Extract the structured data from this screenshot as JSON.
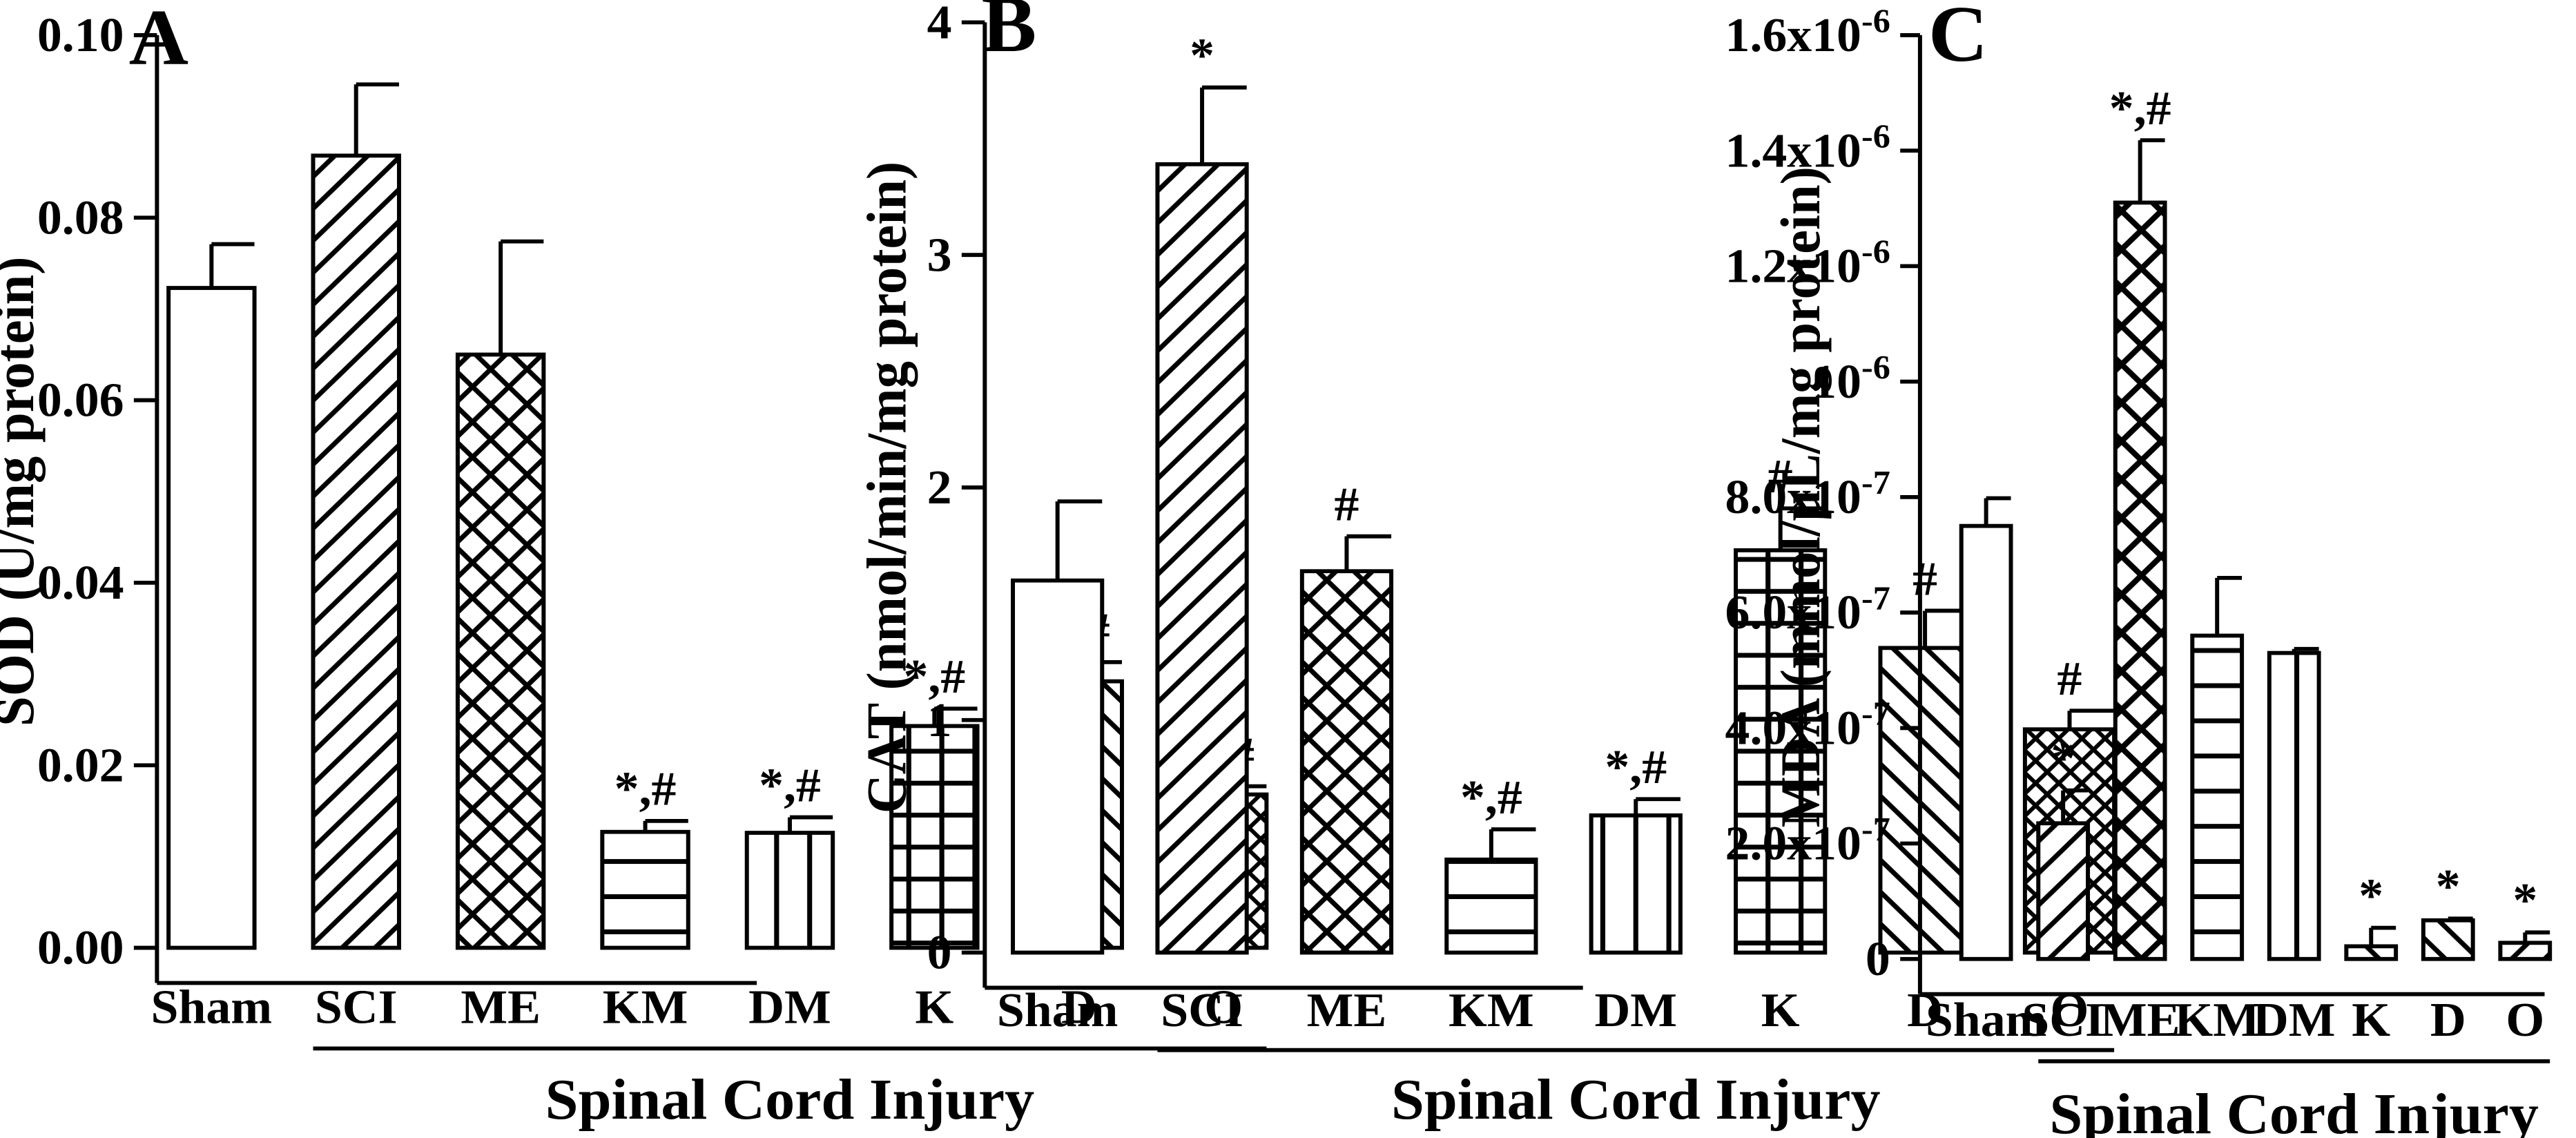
{
  "chart_data": [
    {
      "type": "bar",
      "panel_letter": "A",
      "categories": [
        "Sham",
        "SCI",
        "ME",
        "KM",
        "DM",
        "K",
        "D",
        "O"
      ],
      "values": [
        0.0723,
        0.0868,
        0.065,
        0.0127,
        0.0126,
        0.0243,
        0.0292,
        0.0168
      ],
      "errors": [
        0.0048,
        0.0078,
        0.0124,
        0.0012,
        0.0017,
        0.0019,
        0.0021,
        0.0009
      ],
      "significance": [
        "",
        "",
        "",
        "*,#",
        "*,#",
        "*,#",
        "*,#",
        "*,#"
      ],
      "patterns": [
        "none",
        "diag-up",
        "cross-diag",
        "horizontal",
        "vertical",
        "grid",
        "diag-down",
        "cross-diag-small"
      ],
      "ylabel": "SOD (U/mg protein)",
      "ylim": [
        0,
        0.1
      ],
      "yticks": [
        0,
        0.02,
        0.04,
        0.06,
        0.08,
        0.1
      ],
      "ytick_labels": [
        "0.00",
        "0.02",
        "0.04",
        "0.06",
        "0.08",
        "0.10"
      ],
      "group_label": "Spinal Cord Injury",
      "group_start": "SCI",
      "group_end": "O"
    },
    {
      "type": "bar",
      "panel_letter": "B",
      "categories": [
        "Sham",
        "SCI",
        "ME",
        "KM",
        "DM",
        "K",
        "D",
        "O"
      ],
      "values": [
        1.6,
        3.39,
        1.64,
        0.4,
        0.59,
        1.73,
        1.31,
        0.96
      ],
      "errors": [
        0.34,
        0.33,
        0.15,
        0.13,
        0.07,
        0.18,
        0.16,
        0.08
      ],
      "significance": [
        "",
        "*",
        "#",
        "*,#",
        "*,#",
        "#",
        "#",
        "#"
      ],
      "patterns": [
        "none",
        "diag-up",
        "cross-diag",
        "horizontal",
        "vertical",
        "grid",
        "diag-down",
        "cross-diag-small"
      ],
      "ylabel": "CAT (nmol/min/mg protein)",
      "ylim": [
        0,
        4
      ],
      "yticks": [
        0,
        1,
        2,
        3,
        4
      ],
      "ytick_labels": [
        "0",
        "1",
        "2",
        "3",
        "4"
      ],
      "group_label": "Spinal Cord Injury",
      "group_start": "SCI",
      "group_end": "O"
    },
    {
      "type": "bar",
      "panel_letter": "C",
      "categories": [
        "Sham",
        "SCI",
        "ME",
        "KM",
        "DM",
        "K",
        "D",
        "O"
      ],
      "values": [
        7.5e-07,
        2.35e-07,
        1.31e-06,
        5.6e-07,
        5.3e-07,
        2.2e-08,
        6.7e-08,
        2.8e-08
      ],
      "errors": [
        4.8e-08,
        5.7e-08,
        1.08e-07,
        1e-07,
        7e-09,
        3.2e-08,
        3e-09,
        1.8e-08
      ],
      "significance": [
        "",
        "*",
        "*,#",
        "",
        "",
        "*",
        "*",
        "*"
      ],
      "patterns": [
        "none",
        "diag-up",
        "cross-diag-big",
        "horizontal",
        "vertical",
        "diag-down",
        "diag-down",
        "diag-up"
      ],
      "ylabel": "MDA (mmol/µL/mg protein)",
      "ylim": [
        0,
        1.6e-06
      ],
      "yticks": [
        0,
        2e-07,
        4e-07,
        6e-07,
        8e-07,
        1e-06,
        1.2e-06,
        1.4e-06,
        1.6e-06
      ],
      "ytick_labels": [
        {
          "base": "0",
          "exp": ""
        },
        {
          "base": "2.0x10",
          "exp": "-7"
        },
        {
          "base": "4.0x10",
          "exp": "-7"
        },
        {
          "base": "6.0x10",
          "exp": "-7"
        },
        {
          "base": "8.0x10",
          "exp": "-7"
        },
        {
          "base": "10",
          "exp": "-6"
        },
        {
          "base": "1.2x10",
          "exp": "-6"
        },
        {
          "base": "1.4x10",
          "exp": "-6"
        },
        {
          "base": "1.6x10",
          "exp": "-6"
        }
      ],
      "group_label": "Spinal Cord Injury",
      "group_start": "SCI",
      "group_end": "O"
    }
  ]
}
